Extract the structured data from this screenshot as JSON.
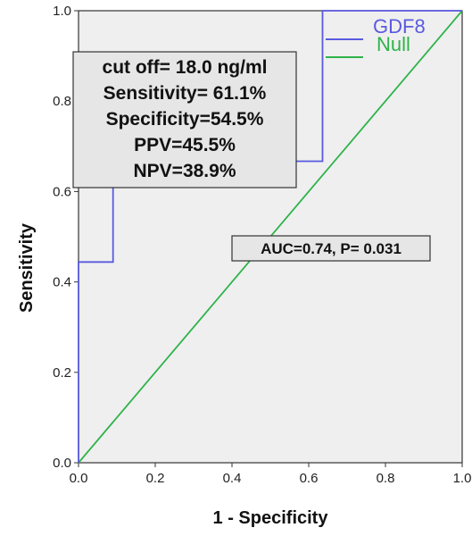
{
  "chart_data": {
    "type": "line",
    "title": "",
    "xlabel": "1 - Specificity",
    "ylabel": "Sensitivity",
    "xlim": [
      0,
      1
    ],
    "ylim": [
      0,
      1
    ],
    "x_ticks": [
      "0.0",
      "0.2",
      "0.4",
      "0.6",
      "0.8",
      "1.0"
    ],
    "y_ticks": [
      "0.0",
      "0.2",
      "0.4",
      "0.6",
      "0.8",
      "1.0"
    ],
    "grid": false,
    "legend_position": "top-right",
    "series": [
      {
        "name": "GDF8",
        "color": "#5a5ae0",
        "x": [
          0,
          0,
          0.09,
          0.09,
          0.545,
          0.545,
          0.636,
          0.636,
          1.0
        ],
        "y": [
          0,
          0.444,
          0.444,
          0.611,
          0.611,
          0.667,
          0.667,
          1.0,
          1.0
        ]
      },
      {
        "name": "Null",
        "color": "#2eb34a",
        "x": [
          0,
          1
        ],
        "y": [
          0,
          1
        ]
      }
    ],
    "annotations": {
      "info_box": [
        "cut off= 18.0 ng/ml",
        "Sensitivity= 61.1%",
        "Specificity=54.5%",
        "PPV=45.5%",
        "NPV=38.9%"
      ],
      "auc_box": "AUC=0.74, P= 0.031"
    }
  }
}
